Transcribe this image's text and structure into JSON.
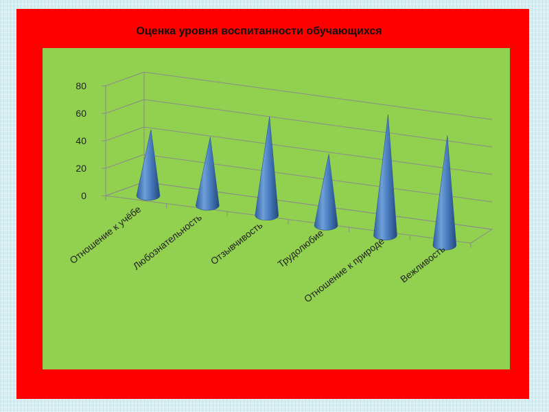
{
  "chart_data": {
    "type": "bar",
    "style": "3d-cone",
    "title": "Оценка уровня воспитанности обучающихся",
    "categories": [
      "Отношение к учёбе",
      "Любознательность",
      "Отзывчивость",
      "Трудолюбие",
      "Отношение к природе",
      "Вежливость"
    ],
    "values": [
      48,
      50,
      72,
      52,
      88,
      80
    ],
    "ylim": [
      0,
      80
    ],
    "yticks": [
      "0",
      "20",
      "40",
      "60",
      "80"
    ],
    "grid": true,
    "legend": "none",
    "colors": {
      "frame": "#ff0000",
      "plot_background": "#92d050",
      "cone": "#4a7ebf"
    }
  }
}
